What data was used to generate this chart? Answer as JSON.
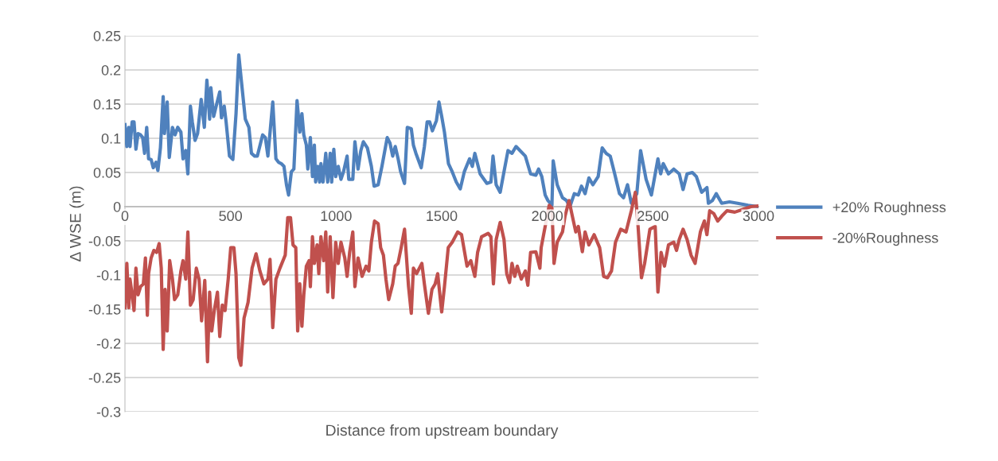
{
  "chart_data": {
    "type": "line",
    "xlabel": "Distance from upstream boundary",
    "ylabel": "Δ WSE (m)",
    "xlim": [
      0,
      3000
    ],
    "xticks": [
      0,
      500,
      1000,
      1500,
      2000,
      2500,
      3000
    ],
    "ylim": [
      -0.3,
      0.25
    ],
    "yticks": [
      -0.3,
      -0.25,
      -0.2,
      -0.15,
      -0.1,
      -0.05,
      0,
      0.05,
      0.1,
      0.15,
      0.2,
      0.25
    ],
    "grid": "y",
    "legend": "right",
    "marker": "none",
    "line_style": "solid",
    "series": [
      {
        "name": "+20% Roughness",
        "color": "#4f81bd",
        "x": [
          0,
          9,
          18,
          24,
          34,
          43,
          52,
          62,
          74,
          84,
          93,
          103,
          112,
          124,
          134,
          147,
          156,
          168,
          181,
          187,
          200,
          210,
          225,
          237,
          250,
          265,
          275,
          288,
          298,
          310,
          319,
          332,
          344,
          361,
          376,
          388,
          401,
          407,
          420,
          432,
          449,
          457,
          470,
          479,
          495,
          511,
          526,
          539,
          552,
          570,
          587,
          599,
          614,
          627,
          652,
          665,
          677,
          700,
          715,
          727,
          740,
          753,
          765,
          775,
          788,
          800,
          815,
          828,
          838,
          847,
          859,
          866,
          878,
          888,
          897,
          903,
          913,
          922,
          928,
          938,
          951,
          960,
          972,
          979,
          989,
          998,
          1010,
          1023,
          1035,
          1052,
          1060,
          1079,
          1089,
          1104,
          1117,
          1129,
          1148,
          1167,
          1180,
          1199,
          1217,
          1242,
          1255,
          1268,
          1280,
          1293,
          1305,
          1324,
          1337,
          1356,
          1366,
          1378,
          1403,
          1418,
          1431,
          1443,
          1456,
          1475,
          1487,
          1500,
          1513,
          1532,
          1550,
          1569,
          1588,
          1607,
          1632,
          1645,
          1657,
          1682,
          1714,
          1733,
          1743,
          1758,
          1777,
          1795,
          1814,
          1833,
          1852,
          1871,
          1896,
          1921,
          1946,
          1959,
          1974,
          1990,
          2003,
          2022,
          2028,
          2047,
          2072,
          2091,
          2107,
          2128,
          2147,
          2162,
          2179,
          2197,
          2216,
          2241,
          2260,
          2279,
          2298,
          2317,
          2342,
          2361,
          2380,
          2398,
          2424,
          2442,
          2468,
          2493,
          2524,
          2537,
          2549,
          2574,
          2599,
          2625,
          2643,
          2662,
          2687,
          2706,
          2731,
          2756,
          2763,
          2782,
          2800,
          2826,
          2863,
          2901,
          2951,
          3000
        ],
        "values": [
          0.12,
          0.088,
          0.116,
          0.088,
          0.124,
          0.124,
          0.084,
          0.107,
          0.105,
          0.101,
          0.078,
          0.116,
          0.07,
          0.069,
          0.057,
          0.065,
          0.053,
          0.086,
          0.161,
          0.107,
          0.153,
          0.072,
          0.116,
          0.105,
          0.116,
          0.109,
          0.07,
          0.082,
          0.048,
          0.147,
          0.124,
          0.097,
          0.107,
          0.157,
          0.116,
          0.185,
          0.128,
          0.174,
          0.132,
          0.147,
          0.168,
          0.13,
          0.147,
          0.124,
          0.074,
          0.069,
          0.136,
          0.222,
          0.182,
          0.128,
          0.116,
          0.078,
          0.074,
          0.074,
          0.105,
          0.101,
          0.074,
          0.153,
          0.07,
          0.065,
          0.063,
          0.059,
          0.032,
          0.017,
          0.051,
          0.055,
          0.155,
          0.109,
          0.136,
          0.105,
          0.09,
          0.055,
          0.101,
          0.044,
          0.09,
          0.036,
          0.059,
          0.036,
          0.063,
          0.036,
          0.078,
          0.036,
          0.078,
          0.036,
          0.084,
          0.044,
          0.059,
          0.04,
          0.051,
          0.074,
          0.04,
          0.04,
          0.095,
          0.055,
          0.082,
          0.095,
          0.086,
          0.059,
          0.03,
          0.032,
          0.059,
          0.101,
          0.093,
          0.074,
          0.088,
          0.071,
          0.052,
          0.034,
          0.116,
          0.114,
          0.09,
          0.078,
          0.057,
          0.088,
          0.124,
          0.124,
          0.111,
          0.126,
          0.153,
          0.132,
          0.109,
          0.063,
          0.051,
          0.036,
          0.026,
          0.051,
          0.07,
          0.059,
          0.078,
          0.048,
          0.034,
          0.036,
          0.074,
          0.032,
          0.021,
          0.051,
          0.082,
          0.078,
          0.088,
          0.082,
          0.074,
          0.048,
          0.046,
          0.055,
          0.044,
          0.017,
          0.009,
          0.002,
          0.067,
          0.032,
          0.013,
          0.009,
          0.0,
          0.019,
          0.017,
          0.03,
          0.019,
          0.042,
          0.032,
          0.044,
          0.086,
          0.078,
          0.074,
          0.051,
          0.019,
          0.013,
          0.032,
          0.005,
          0.019,
          0.082,
          0.04,
          0.017,
          0.07,
          0.048,
          0.063,
          0.048,
          0.055,
          0.048,
          0.025,
          0.048,
          0.05,
          0.044,
          0.021,
          0.028,
          0.005,
          0.009,
          0.019,
          0.005,
          0.007,
          0.005,
          0.002,
          0.0
        ]
      },
      {
        "name": "-20%Roughness",
        "color": "#c0504d",
        "x": [
          0,
          9,
          18,
          24,
          34,
          43,
          52,
          62,
          74,
          87,
          97,
          106,
          112,
          124,
          137,
          150,
          162,
          172,
          181,
          190,
          200,
          212,
          225,
          235,
          250,
          265,
          275,
          288,
          298,
          310,
          323,
          338,
          351,
          363,
          378,
          391,
          401,
          411,
          423,
          438,
          449,
          461,
          474,
          489,
          501,
          516,
          526,
          539,
          549,
          564,
          583,
          602,
          621,
          639,
          658,
          677,
          687,
          700,
          715,
          734,
          759,
          771,
          784,
          796,
          809,
          818,
          828,
          838,
          847,
          859,
          872,
          878,
          888,
          897,
          910,
          918,
          928,
          941,
          951,
          960,
          972,
          985,
          998,
          1010,
          1023,
          1041,
          1052,
          1064,
          1079,
          1089,
          1104,
          1123,
          1142,
          1155,
          1167,
          1182,
          1199,
          1211,
          1224,
          1236,
          1249,
          1268,
          1280,
          1293,
          1308,
          1324,
          1343,
          1356,
          1366,
          1381,
          1406,
          1418,
          1437,
          1454,
          1469,
          1481,
          1500,
          1513,
          1531,
          1550,
          1576,
          1594,
          1620,
          1638,
          1657,
          1670,
          1689,
          1720,
          1733,
          1745,
          1758,
          1777,
          1795,
          1808,
          1821,
          1833,
          1846,
          1858,
          1877,
          1896,
          1908,
          1921,
          1946,
          1965,
          1971,
          1990,
          2009,
          2022,
          2032,
          2047,
          2072,
          2084,
          2103,
          2116,
          2135,
          2147,
          2166,
          2179,
          2197,
          2222,
          2248,
          2267,
          2285,
          2304,
          2323,
          2348,
          2373,
          2398,
          2417,
          2430,
          2446,
          2461,
          2486,
          2511,
          2524,
          2539,
          2555,
          2574,
          2599,
          2612,
          2625,
          2643,
          2662,
          2681,
          2700,
          2725,
          2744,
          2756,
          2769,
          2788,
          2807,
          2826,
          2851,
          2888,
          2926,
          2964,
          3000
        ],
        "values": [
          -0.148,
          -0.083,
          -0.148,
          -0.106,
          -0.129,
          -0.152,
          -0.09,
          -0.129,
          -0.117,
          -0.113,
          -0.075,
          -0.159,
          -0.098,
          -0.075,
          -0.064,
          -0.067,
          -0.054,
          -0.09,
          -0.209,
          -0.121,
          -0.182,
          -0.079,
          -0.106,
          -0.136,
          -0.129,
          -0.094,
          -0.079,
          -0.106,
          -0.037,
          -0.144,
          -0.136,
          -0.09,
          -0.106,
          -0.167,
          -0.108,
          -0.227,
          -0.125,
          -0.182,
          -0.152,
          -0.125,
          -0.19,
          -0.144,
          -0.152,
          -0.106,
          -0.06,
          -0.06,
          -0.098,
          -0.221,
          -0.232,
          -0.163,
          -0.14,
          -0.09,
          -0.069,
          -0.094,
          -0.113,
          -0.106,
          -0.077,
          -0.177,
          -0.106,
          -0.09,
          -0.071,
          -0.016,
          -0.016,
          -0.056,
          -0.06,
          -0.182,
          -0.113,
          -0.175,
          -0.129,
          -0.087,
          -0.079,
          -0.117,
          -0.044,
          -0.083,
          -0.056,
          -0.098,
          -0.044,
          -0.079,
          -0.037,
          -0.125,
          -0.044,
          -0.133,
          -0.052,
          -0.083,
          -0.052,
          -0.075,
          -0.102,
          -0.067,
          -0.037,
          -0.117,
          -0.075,
          -0.102,
          -0.087,
          -0.094,
          -0.052,
          -0.021,
          -0.025,
          -0.06,
          -0.071,
          -0.106,
          -0.136,
          -0.113,
          -0.087,
          -0.083,
          -0.06,
          -0.033,
          -0.117,
          -0.156,
          -0.09,
          -0.098,
          -0.083,
          -0.113,
          -0.156,
          -0.121,
          -0.113,
          -0.098,
          -0.154,
          -0.117,
          -0.06,
          -0.052,
          -0.037,
          -0.041,
          -0.087,
          -0.079,
          -0.102,
          -0.067,
          -0.044,
          -0.039,
          -0.044,
          -0.113,
          -0.048,
          -0.023,
          -0.048,
          -0.098,
          -0.111,
          -0.083,
          -0.102,
          -0.087,
          -0.106,
          -0.094,
          -0.115,
          -0.067,
          -0.066,
          -0.09,
          -0.06,
          -0.029,
          0.002,
          -0.002,
          -0.083,
          -0.052,
          -0.037,
          -0.014,
          0.009,
          -0.01,
          -0.037,
          -0.029,
          -0.066,
          -0.037,
          -0.056,
          -0.041,
          -0.06,
          -0.102,
          -0.104,
          -0.094,
          -0.052,
          -0.033,
          -0.037,
          -0.006,
          0.021,
          -0.029,
          -0.104,
          -0.083,
          -0.033,
          -0.029,
          -0.125,
          -0.067,
          -0.087,
          -0.056,
          -0.052,
          -0.064,
          -0.048,
          -0.033,
          -0.048,
          -0.071,
          -0.083,
          -0.037,
          -0.021,
          -0.041,
          -0.006,
          -0.01,
          -0.021,
          -0.014,
          -0.006,
          -0.008,
          -0.004,
          0.0,
          0.001
        ]
      }
    ]
  }
}
